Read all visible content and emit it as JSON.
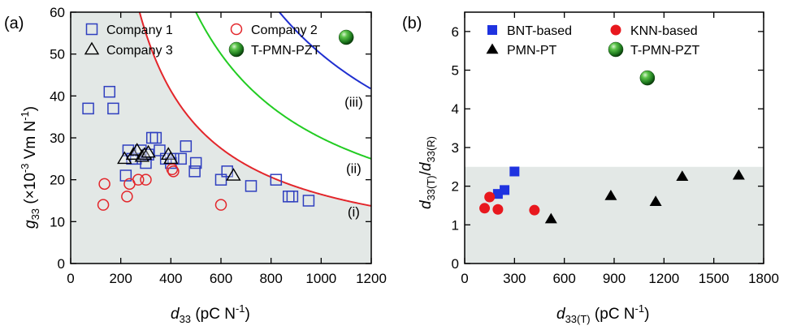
{
  "chart_data": [
    {
      "type": "scatter",
      "panel_label": "(a)",
      "xlabel": {
        "main": "d",
        "sub": "33",
        "rest": " (pC N",
        "sup": "-1",
        "close": ")"
      },
      "ylabel": {
        "main": "g",
        "sub": "33",
        "rest": " (×10",
        "sup1": "-3",
        "mid": " Vm N",
        "sup2": "-1",
        "close": ")"
      },
      "xlim": [
        0,
        1200
      ],
      "ylim": [
        0,
        60
      ],
      "xticks": [
        0,
        200,
        400,
        600,
        800,
        1000,
        1200
      ],
      "yticks": [
        0,
        10,
        20,
        30,
        40,
        50,
        60
      ],
      "shaded_region": "region below curve (i)",
      "legend": {
        "position": "top",
        "columns": 2
      },
      "series": [
        {
          "name": "Company 1",
          "marker": "open-square",
          "color": "#2f3fbf",
          "points": [
            [
              70,
              37
            ],
            [
              155,
              41
            ],
            [
              170,
              37
            ],
            [
              220,
              21
            ],
            [
              230,
              27
            ],
            [
              245,
              25
            ],
            [
              260,
              25
            ],
            [
              280,
              27
            ],
            [
              300,
              24
            ],
            [
              310,
              26
            ],
            [
              325,
              30
            ],
            [
              340,
              30
            ],
            [
              355,
              27
            ],
            [
              380,
              25
            ],
            [
              400,
              24
            ],
            [
              410,
              25
            ],
            [
              440,
              25
            ],
            [
              460,
              28
            ],
            [
              495,
              22
            ],
            [
              500,
              24
            ],
            [
              600,
              20
            ],
            [
              625,
              22
            ],
            [
              720,
              18.5
            ],
            [
              820,
              20
            ],
            [
              870,
              16
            ],
            [
              885,
              16
            ],
            [
              950,
              15
            ]
          ]
        },
        {
          "name": "Company 2",
          "marker": "open-circle",
          "color": "#e3262b",
          "points": [
            [
              130,
              14
            ],
            [
              135,
              19
            ],
            [
              225,
              16
            ],
            [
              235,
              19
            ],
            [
              270,
              20
            ],
            [
              300,
              20
            ],
            [
              405,
              22.5
            ],
            [
              410,
              22
            ],
            [
              600,
              14
            ]
          ]
        },
        {
          "name": "Company 3",
          "marker": "open-triangle",
          "color": "#000000",
          "points": [
            [
              215,
              25
            ],
            [
              250,
              26
            ],
            [
              265,
              27
            ],
            [
              285,
              25.5
            ],
            [
              295,
              26
            ],
            [
              310,
              26.5
            ],
            [
              390,
              26
            ],
            [
              400,
              25
            ],
            [
              650,
              21
            ]
          ]
        },
        {
          "name": "T-PMN-PZT",
          "marker": "sphere",
          "color": "#2e8b2e",
          "points": [
            [
              1100,
              54
            ]
          ]
        }
      ],
      "curves": [
        {
          "label": "(i)",
          "product": 16500,
          "color": "#e3262b"
        },
        {
          "label": "(ii)",
          "product": 30000,
          "color": "#22cc22"
        },
        {
          "label": "(iii)",
          "product": 50000,
          "color": "#1f2fd0"
        }
      ]
    },
    {
      "type": "scatter",
      "panel_label": "(b)",
      "xlabel": {
        "main": "d",
        "sub": "33(T)",
        "rest": " (pC N",
        "sup": "-1",
        "close": ")"
      },
      "ylabel": {
        "main1": "d",
        "sub1": "33(T)",
        "slash": "/",
        "main2": "d",
        "sub2": "33(R)"
      },
      "xlim": [
        0,
        1800
      ],
      "ylim": [
        0,
        6.5
      ],
      "xticks": [
        0,
        300,
        600,
        900,
        1200,
        1500,
        1800
      ],
      "yticks": [
        0,
        1,
        2,
        3,
        4,
        5,
        6
      ],
      "shaded_region": "y below 2.5",
      "legend": {
        "position": "top",
        "columns": 2
      },
      "series": [
        {
          "name": "BNT-based",
          "marker": "filled-square",
          "color": "#1f33e0",
          "points": [
            [
              200,
              1.8
            ],
            [
              240,
              1.9
            ],
            [
              300,
              2.38
            ]
          ]
        },
        {
          "name": "KNN-based",
          "marker": "filled-circle",
          "color": "#e8181e",
          "points": [
            [
              120,
              1.43
            ],
            [
              150,
              1.72
            ],
            [
              200,
              1.4
            ],
            [
              420,
              1.38
            ]
          ]
        },
        {
          "name": "PMN-PT",
          "marker": "filled-triangle",
          "color": "#000000",
          "points": [
            [
              520,
              1.15
            ],
            [
              880,
              1.75
            ],
            [
              1150,
              1.6
            ],
            [
              1310,
              2.25
            ],
            [
              1650,
              2.28
            ]
          ]
        },
        {
          "name": "T-PMN-PZT",
          "marker": "sphere",
          "color": "#2e8b2e",
          "points": [
            [
              1100,
              4.8
            ]
          ]
        }
      ]
    }
  ]
}
